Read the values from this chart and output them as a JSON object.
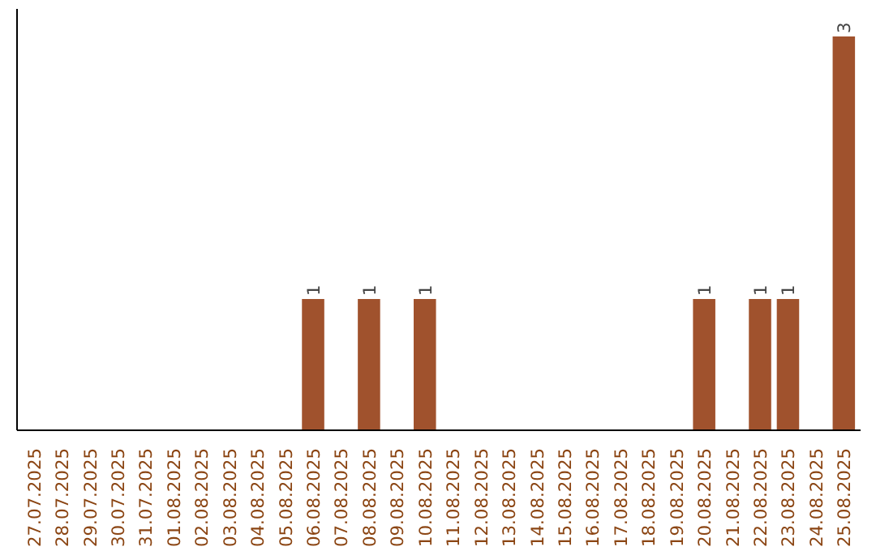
{
  "chart_data": {
    "type": "bar",
    "categories": [
      "27.07.2025",
      "28.07.2025",
      "29.07.2025",
      "30.07.2025",
      "31.07.2025",
      "01.08.2025",
      "02.08.2025",
      "03.08.2025",
      "04.08.2025",
      "05.08.2025",
      "06.08.2025",
      "07.08.2025",
      "08.08.2025",
      "09.08.2025",
      "10.08.2025",
      "11.08.2025",
      "12.08.2025",
      "13.08.2025",
      "14.08.2025",
      "15.08.2025",
      "16.08.2025",
      "17.08.2025",
      "18.08.2025",
      "19.08.2025",
      "20.08.2025",
      "21.08.2025",
      "22.08.2025",
      "23.08.2025",
      "24.08.2025",
      "25.08.2025"
    ],
    "values": [
      0,
      0,
      0,
      0,
      0,
      0,
      0,
      0,
      0,
      0,
      1,
      0,
      1,
      0,
      1,
      0,
      0,
      0,
      0,
      0,
      0,
      0,
      0,
      0,
      1,
      0,
      1,
      1,
      0,
      3
    ],
    "value_labels": [
      null,
      null,
      null,
      null,
      null,
      null,
      null,
      null,
      null,
      null,
      "1",
      null,
      "1",
      null,
      "1",
      null,
      null,
      null,
      null,
      null,
      null,
      null,
      null,
      null,
      "1",
      null,
      "1",
      "1",
      null,
      "3"
    ],
    "color": "#a0522d",
    "grid": false,
    "tick_labels": "x"
  }
}
